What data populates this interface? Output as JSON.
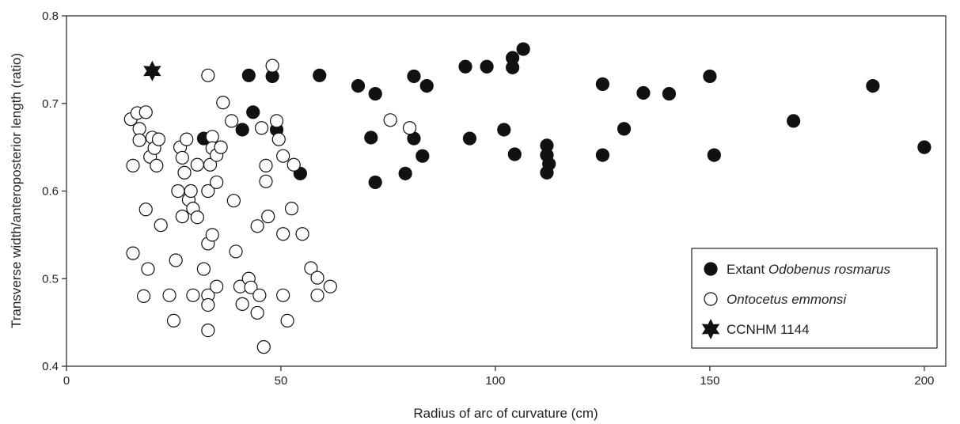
{
  "chart_data": {
    "type": "scatter",
    "xlabel": "Radius of arc of curvature (cm)",
    "ylabel": "Transverse width/anteroposterior length (ratio)",
    "xlim": [
      0,
      205
    ],
    "ylim": [
      0.4,
      0.8
    ],
    "xticks": [
      "0",
      "50",
      "100",
      "150",
      "200"
    ],
    "yticks": [
      "0.4",
      "0.5",
      "0.6",
      "0.7",
      "0.8"
    ],
    "xtick_values": [
      0,
      50,
      100,
      150,
      200
    ],
    "ytick_values": [
      0.4,
      0.5,
      0.6,
      0.7,
      0.8
    ],
    "grid": false,
    "legend_position": "bottom-right",
    "series": [
      {
        "name": "Extant Odobenus rosmarus",
        "legend_prefix": "Extant ",
        "legend_italic": "Odobenus rosmarus",
        "marker": "filled-circle",
        "color": "#111111",
        "points": [
          [
            32,
            0.66
          ],
          [
            41,
            0.67
          ],
          [
            42.5,
            0.732
          ],
          [
            43.5,
            0.69
          ],
          [
            48,
            0.731
          ],
          [
            49,
            0.67
          ],
          [
            54.5,
            0.62
          ],
          [
            59,
            0.732
          ],
          [
            68,
            0.72
          ],
          [
            71,
            0.661
          ],
          [
            72,
            0.61
          ],
          [
            72,
            0.711
          ],
          [
            79,
            0.62
          ],
          [
            81,
            0.66
          ],
          [
            81,
            0.731
          ],
          [
            83,
            0.64
          ],
          [
            84,
            0.72
          ],
          [
            93,
            0.742
          ],
          [
            94,
            0.66
          ],
          [
            98,
            0.742
          ],
          [
            102,
            0.67
          ],
          [
            104,
            0.752
          ],
          [
            104,
            0.741
          ],
          [
            104.5,
            0.642
          ],
          [
            106.5,
            0.762
          ],
          [
            112,
            0.652
          ],
          [
            112,
            0.641
          ],
          [
            112.5,
            0.631
          ],
          [
            112,
            0.621
          ],
          [
            125,
            0.722
          ],
          [
            125,
            0.641
          ],
          [
            130,
            0.671
          ],
          [
            134.5,
            0.712
          ],
          [
            140.5,
            0.711
          ],
          [
            150,
            0.731
          ],
          [
            151,
            0.641
          ],
          [
            169.5,
            0.68
          ],
          [
            188,
            0.72
          ],
          [
            200,
            0.65
          ]
        ]
      },
      {
        "name": "Ontocetus emmonsi",
        "legend_prefix": "",
        "legend_italic": "Ontocetus emmonsi",
        "marker": "open-circle",
        "color": "#111111",
        "points": [
          [
            15,
            0.682
          ],
          [
            15.5,
            0.629
          ],
          [
            15.5,
            0.529
          ],
          [
            16.5,
            0.689
          ],
          [
            17,
            0.671
          ],
          [
            17,
            0.658
          ],
          [
            18,
            0.48
          ],
          [
            18.5,
            0.69
          ],
          [
            18.5,
            0.579
          ],
          [
            19,
            0.511
          ],
          [
            19.5,
            0.639
          ],
          [
            20,
            0.661
          ],
          [
            20.5,
            0.649
          ],
          [
            21,
            0.629
          ],
          [
            21.5,
            0.659
          ],
          [
            22,
            0.561
          ],
          [
            24,
            0.481
          ],
          [
            25,
            0.452
          ],
          [
            25.5,
            0.521
          ],
          [
            26,
            0.6
          ],
          [
            26.5,
            0.65
          ],
          [
            27,
            0.571
          ],
          [
            27,
            0.638
          ],
          [
            27.5,
            0.621
          ],
          [
            28,
            0.659
          ],
          [
            28.5,
            0.59
          ],
          [
            29,
            0.6
          ],
          [
            29.5,
            0.58
          ],
          [
            29.5,
            0.481
          ],
          [
            30.5,
            0.57
          ],
          [
            30.5,
            0.63
          ],
          [
            32,
            0.511
          ],
          [
            33,
            0.481
          ],
          [
            33,
            0.6
          ],
          [
            33,
            0.54
          ],
          [
            33,
            0.47
          ],
          [
            33,
            0.732
          ],
          [
            33,
            0.441
          ],
          [
            33.5,
            0.63
          ],
          [
            34,
            0.662
          ],
          [
            34,
            0.649
          ],
          [
            34,
            0.55
          ],
          [
            35,
            0.61
          ],
          [
            35,
            0.641
          ],
          [
            35,
            0.491
          ],
          [
            36,
            0.65
          ],
          [
            36.5,
            0.701
          ],
          [
            38.5,
            0.68
          ],
          [
            39,
            0.589
          ],
          [
            39.5,
            0.531
          ],
          [
            40.5,
            0.491
          ],
          [
            41,
            0.471
          ],
          [
            42.5,
            0.5
          ],
          [
            43,
            0.49
          ],
          [
            44.5,
            0.56
          ],
          [
            44.5,
            0.461
          ],
          [
            45,
            0.481
          ],
          [
            45.5,
            0.672
          ],
          [
            46,
            0.422
          ],
          [
            46.5,
            0.629
          ],
          [
            46.5,
            0.611
          ],
          [
            47,
            0.571
          ],
          [
            48,
            0.743
          ],
          [
            49,
            0.68
          ],
          [
            49.5,
            0.659
          ],
          [
            50.5,
            0.64
          ],
          [
            50.5,
            0.551
          ],
          [
            50.5,
            0.481
          ],
          [
            51.5,
            0.452
          ],
          [
            52.5,
            0.58
          ],
          [
            53,
            0.63
          ],
          [
            55,
            0.551
          ],
          [
            57,
            0.512
          ],
          [
            58.5,
            0.501
          ],
          [
            58.5,
            0.481
          ],
          [
            61.5,
            0.491
          ],
          [
            75.5,
            0.681
          ],
          [
            80,
            0.672
          ]
        ]
      },
      {
        "name": "CCNHM 1144",
        "legend_prefix": "CCNHM 1144",
        "legend_italic": "",
        "marker": "star",
        "color": "#111111",
        "points": [
          [
            20,
            0.737
          ]
        ]
      }
    ]
  }
}
